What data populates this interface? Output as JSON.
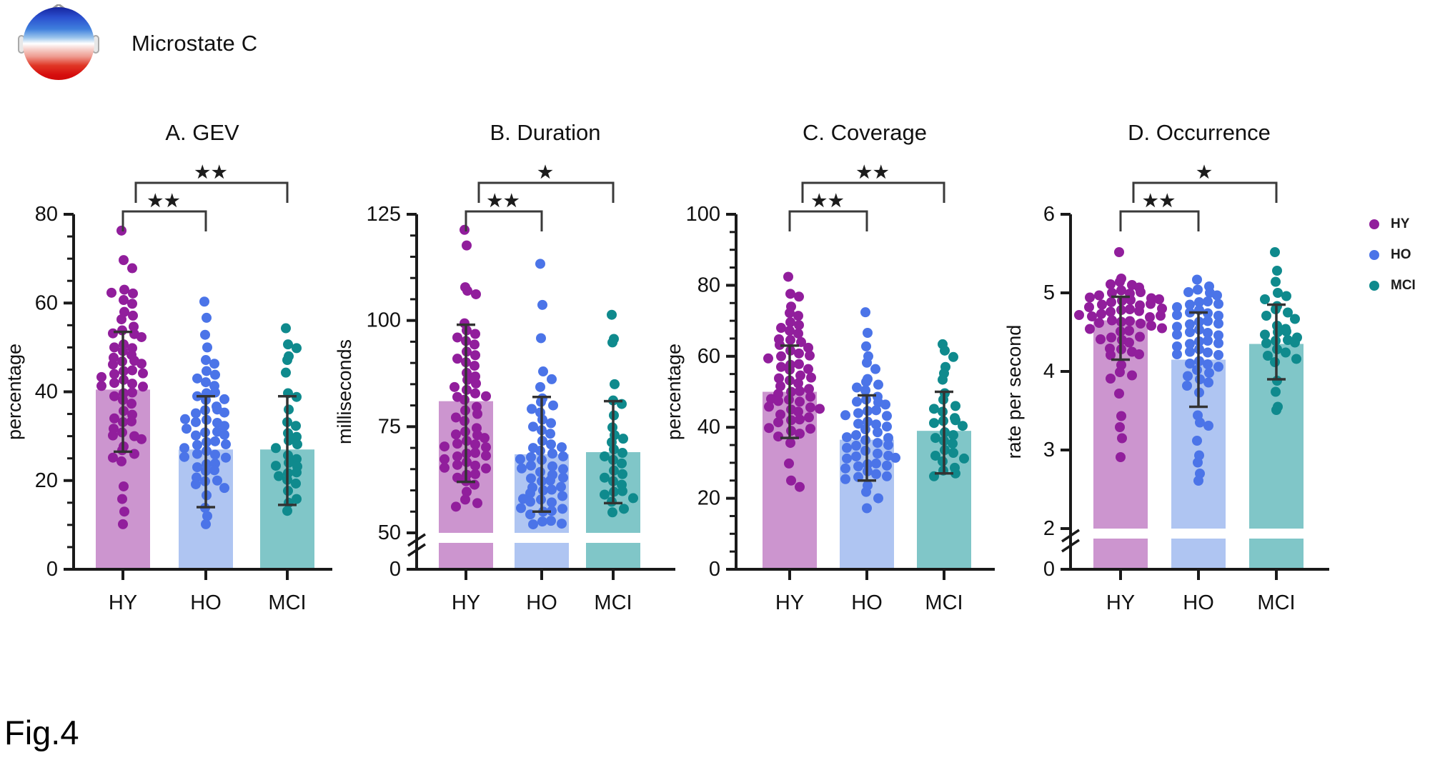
{
  "header": {
    "title": "Microstate C",
    "icon": "eeg-topography-icon"
  },
  "figure_label": "Fig.4",
  "groups": [
    {
      "name": "HY",
      "dot_color": "#911E9C",
      "bar_color": "#CC95CF"
    },
    {
      "name": "HO",
      "dot_color": "#4B74E8",
      "bar_color": "#AFC5F2"
    },
    {
      "name": "MCI",
      "dot_color": "#0F8A8D",
      "bar_color": "#80C6C8"
    }
  ],
  "legend": {
    "items": [
      {
        "label": "HY"
      },
      {
        "label": "HO"
      },
      {
        "label": "MCI"
      }
    ]
  },
  "chart_data": [
    {
      "id": "A",
      "type": "bar",
      "title": "A. GEV",
      "ylabel": "percentage",
      "categories": [
        "HY",
        "HO",
        "MCI"
      ],
      "ymin": 0,
      "ymax": 80,
      "yticks": [
        0,
        20,
        40,
        60,
        80
      ],
      "minor_step": 5,
      "axis_break": false,
      "base_label": null,
      "bar_values": [
        40.5,
        27,
        27
      ],
      "error_low": [
        26.5,
        14,
        14.5
      ],
      "error_high": [
        53.5,
        39,
        39
      ],
      "significance": [
        {
          "pair": [
            0,
            1
          ],
          "stars": "**"
        },
        {
          "pair": [
            0,
            2
          ],
          "stars": "**"
        }
      ],
      "points": {
        "HY": [
          76,
          70,
          68,
          63,
          62,
          62,
          61,
          60,
          58,
          57,
          56,
          55,
          54,
          53,
          53,
          52,
          51,
          50,
          50,
          49,
          48,
          48,
          47,
          47,
          46,
          46,
          45,
          45,
          44,
          44,
          43,
          43,
          42,
          42,
          41,
          41,
          40,
          40,
          39,
          38,
          37,
          36,
          35,
          34,
          33,
          33,
          32,
          31,
          30,
          30,
          29,
          28,
          27,
          26,
          25,
          24,
          19,
          16,
          13,
          10
        ],
        "HO": [
          60,
          57,
          53,
          50,
          47,
          46,
          45,
          44,
          43,
          42,
          41,
          40,
          40,
          39,
          38,
          38,
          37,
          36,
          36,
          35,
          35,
          34,
          34,
          33,
          33,
          32,
          32,
          31,
          31,
          30,
          30,
          29,
          29,
          28,
          28,
          27,
          27,
          26,
          26,
          25,
          25,
          24,
          24,
          23,
          22,
          22,
          21,
          20,
          20,
          19,
          18,
          17,
          14,
          12,
          10
        ],
        "MCI": [
          54,
          51,
          50,
          48,
          47,
          44,
          40,
          39,
          36,
          33,
          32,
          31,
          30,
          29,
          28,
          27,
          26,
          25,
          24,
          23,
          23,
          22,
          22,
          21,
          20,
          19,
          18,
          16,
          15,
          13
        ]
      }
    },
    {
      "id": "B",
      "type": "bar",
      "title": "B. Duration",
      "ylabel": "milliseconds",
      "categories": [
        "HY",
        "HO",
        "MCI"
      ],
      "ymin": 50,
      "ymax": 125,
      "yticks": [
        50,
        75,
        100,
        125
      ],
      "minor_step": 5,
      "axis_break": true,
      "base_label": "0",
      "bar_values": [
        81,
        68.5,
        69
      ],
      "error_low": [
        62,
        55,
        57
      ],
      "error_high": [
        99,
        82,
        81
      ],
      "significance": [
        {
          "pair": [
            0,
            1
          ],
          "stars": "**"
        },
        {
          "pair": [
            0,
            2
          ],
          "stars": "*"
        }
      ],
      "points": {
        "HY": [
          121,
          118,
          108,
          107,
          106,
          99,
          98,
          97,
          96,
          95,
          94,
          93,
          92,
          91,
          90,
          89,
          88,
          87,
          86,
          85,
          84,
          84,
          83,
          82,
          82,
          81,
          80,
          79,
          78,
          77,
          76,
          75,
          74,
          73,
          73,
          72,
          72,
          71,
          71,
          70,
          70,
          69,
          69,
          68,
          68,
          67,
          67,
          66,
          66,
          65,
          65,
          64,
          64,
          63,
          62,
          61,
          60,
          58,
          57,
          56
        ],
        "HO": [
          113,
          104,
          96,
          88,
          86,
          84,
          82,
          81,
          80,
          79,
          78,
          77,
          76,
          75,
          74,
          73,
          72,
          71,
          70,
          70,
          69,
          69,
          68,
          68,
          67,
          67,
          66,
          66,
          65,
          65,
          64,
          64,
          63,
          63,
          62,
          62,
          61,
          61,
          60,
          60,
          59,
          59,
          58,
          58,
          57,
          57,
          56,
          56,
          55,
          55,
          54,
          53,
          53,
          52,
          52
        ],
        "MCI": [
          101,
          96,
          95,
          85,
          81,
          80,
          78,
          75,
          73,
          72,
          71,
          70,
          69,
          68,
          67,
          66,
          65,
          64,
          63,
          62,
          61,
          60,
          60,
          59,
          58,
          57,
          56,
          55
        ]
      }
    },
    {
      "id": "C",
      "type": "bar",
      "title": "C. Coverage",
      "ylabel": "percentage",
      "categories": [
        "HY",
        "HO",
        "MCI"
      ],
      "ymin": 0,
      "ymax": 100,
      "yticks": [
        0,
        20,
        40,
        60,
        80,
        100
      ],
      "minor_step": 5,
      "axis_break": false,
      "base_label": null,
      "bar_values": [
        50,
        36.5,
        39
      ],
      "error_low": [
        37,
        25,
        27
      ],
      "error_high": [
        63,
        49,
        50
      ],
      "significance": [
        {
          "pair": [
            0,
            1
          ],
          "stars": "**"
        },
        {
          "pair": [
            0,
            2
          ],
          "stars": "**"
        }
      ],
      "points": {
        "HY": [
          82,
          78,
          77,
          74,
          72,
          71,
          70,
          69,
          68,
          67,
          66,
          65,
          65,
          64,
          63,
          62,
          62,
          61,
          60,
          60,
          59,
          58,
          58,
          57,
          56,
          56,
          55,
          54,
          54,
          53,
          52,
          52,
          51,
          50,
          50,
          49,
          49,
          48,
          48,
          47,
          47,
          46,
          46,
          45,
          45,
          44,
          44,
          43,
          42,
          42,
          41,
          40,
          40,
          39,
          38,
          37,
          36,
          30,
          25,
          23
        ],
        "HO": [
          72,
          67,
          63,
          60,
          58,
          56,
          54,
          53,
          52,
          51,
          50,
          49,
          48,
          47,
          47,
          46,
          45,
          45,
          44,
          43,
          43,
          42,
          41,
          41,
          40,
          39,
          39,
          38,
          37,
          37,
          36,
          36,
          35,
          35,
          34,
          33,
          33,
          32,
          32,
          31,
          31,
          30,
          30,
          29,
          29,
          28,
          28,
          27,
          26,
          26,
          25,
          24,
          22,
          20,
          17
        ],
        "MCI": [
          63,
          62,
          60,
          57,
          55,
          53,
          50,
          48,
          46,
          45,
          44,
          43,
          42,
          42,
          41,
          40,
          39,
          38,
          37,
          36,
          35,
          34,
          33,
          32,
          31,
          30,
          29,
          28,
          27,
          26
        ]
      }
    },
    {
      "id": "D",
      "type": "bar",
      "title": "D. Occurrence",
      "ylabel": "rate per second",
      "categories": [
        "HY",
        "HO",
        "MCI"
      ],
      "ymin": 2,
      "ymax": 6,
      "yticks": [
        2,
        3,
        4,
        5,
        6
      ],
      "minor_step": null,
      "axis_break": true,
      "base_label": "0",
      "bar_values": [
        4.65,
        4.15,
        4.35
      ],
      "error_low": [
        4.15,
        3.55,
        3.9
      ],
      "error_high": [
        4.95,
        4.75,
        4.85
      ],
      "significance": [
        {
          "pair": [
            0,
            1
          ],
          "stars": "**"
        },
        {
          "pair": [
            0,
            2
          ],
          "stars": "*"
        }
      ],
      "points": {
        "HY": [
          5.5,
          5.2,
          5.15,
          5.1,
          5.1,
          5.05,
          5.05,
          5.0,
          5.0,
          5.0,
          4.95,
          4.95,
          4.95,
          4.9,
          4.9,
          4.9,
          4.9,
          4.85,
          4.85,
          4.85,
          4.8,
          4.8,
          4.8,
          4.8,
          4.75,
          4.75,
          4.75,
          4.7,
          4.7,
          4.7,
          4.7,
          4.65,
          4.65,
          4.65,
          4.6,
          4.6,
          4.6,
          4.55,
          4.55,
          4.5,
          4.5,
          4.45,
          4.45,
          4.4,
          4.4,
          4.35,
          4.3,
          4.3,
          4.25,
          4.2,
          4.2,
          4.1,
          4.0,
          3.95,
          3.9,
          3.7,
          3.45,
          3.3,
          3.15,
          2.9
        ],
        "HO": [
          5.15,
          5.1,
          5.05,
          5.0,
          5.0,
          4.95,
          4.9,
          4.9,
          4.85,
          4.85,
          4.8,
          4.8,
          4.75,
          4.75,
          4.7,
          4.7,
          4.65,
          4.65,
          4.6,
          4.6,
          4.55,
          4.55,
          4.5,
          4.5,
          4.45,
          4.45,
          4.4,
          4.4,
          4.35,
          4.35,
          4.3,
          4.3,
          4.25,
          4.25,
          4.2,
          4.2,
          4.15,
          4.1,
          4.1,
          4.05,
          4.0,
          4.0,
          3.95,
          3.9,
          3.85,
          3.8,
          3.75,
          3.45,
          3.35,
          3.3,
          3.1,
          2.95,
          2.85,
          2.7,
          2.6
        ],
        "MCI": [
          5.5,
          5.3,
          5.15,
          5.0,
          4.95,
          4.9,
          4.85,
          4.8,
          4.75,
          4.7,
          4.65,
          4.6,
          4.55,
          4.5,
          4.5,
          4.45,
          4.45,
          4.4,
          4.4,
          4.35,
          4.35,
          4.3,
          4.25,
          4.2,
          4.15,
          4.1,
          3.9,
          3.75,
          3.55,
          3.5
        ]
      }
    }
  ]
}
